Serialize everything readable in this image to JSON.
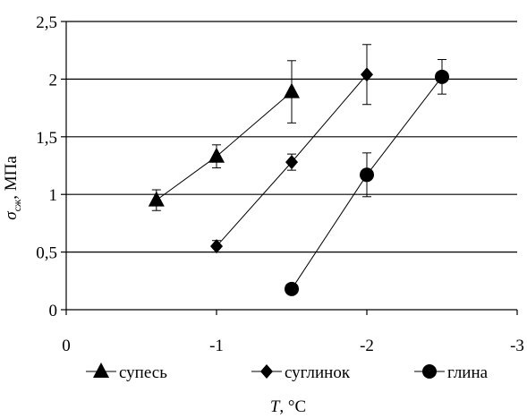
{
  "chart_data": {
    "type": "scatter",
    "x": {
      "min": 0,
      "max": -3,
      "ticks": [
        0,
        -1,
        -2,
        -3
      ],
      "tick_labels": [
        "0",
        "-1",
        "-2",
        "-3"
      ]
    },
    "y": {
      "min": 0,
      "max": 2.5,
      "ticks": [
        0,
        0.5,
        1,
        1.5,
        2,
        2.5
      ],
      "tick_labels": [
        "0",
        "0,5",
        "1",
        "1,5",
        "2",
        "2,5"
      ]
    },
    "grid": "horizontal",
    "legend_position": "bottom",
    "xlabel": {
      "italic": "T",
      "rest": ", °C"
    },
    "ylabel": {
      "sym": "σ",
      "sub": "сж",
      "rest": ", МПа"
    },
    "series": [
      {
        "name": "супесь",
        "marker": "triangle",
        "points": [
          {
            "x": -0.6,
            "y": 0.95,
            "err": 0.09
          },
          {
            "x": -1.0,
            "y": 1.33,
            "err": 0.1
          },
          {
            "x": -1.5,
            "y": 1.89,
            "err": 0.27
          }
        ]
      },
      {
        "name": "суглинок",
        "marker": "diamond",
        "points": [
          {
            "x": -1.0,
            "y": 0.55,
            "err": 0.05
          },
          {
            "x": -1.5,
            "y": 1.28,
            "err": 0.07
          },
          {
            "x": -2.0,
            "y": 2.04,
            "err": 0.26
          }
        ]
      },
      {
        "name": "глина",
        "marker": "circle",
        "points": [
          {
            "x": -1.5,
            "y": 0.18,
            "err": 0
          },
          {
            "x": -2.0,
            "y": 1.17,
            "err": 0.19
          },
          {
            "x": -2.5,
            "y": 2.02,
            "err": 0.15
          }
        ]
      }
    ]
  }
}
